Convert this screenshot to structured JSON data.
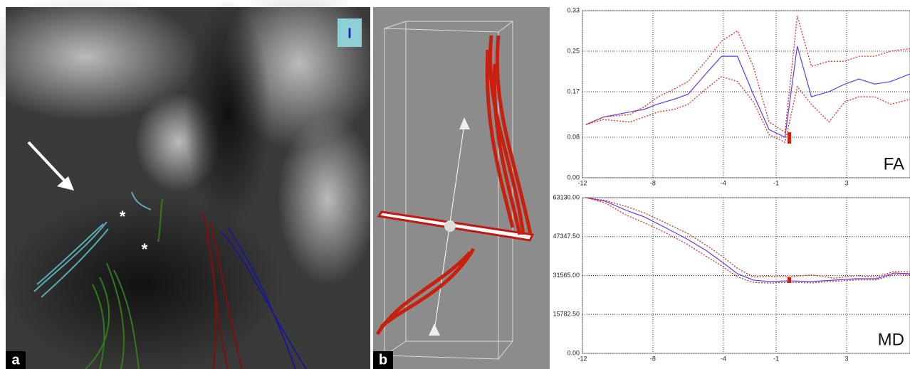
{
  "panels": [
    {
      "label": "a",
      "annotations": [
        "*",
        "*"
      ],
      "cube_label": "I"
    },
    {
      "label": "b"
    }
  ],
  "chart_data": [
    {
      "type": "line",
      "text_label": "FA",
      "x": [
        -11.8,
        -10.8,
        -9.3,
        -8.5,
        -7.7,
        -6.8,
        -6.0,
        -5.0,
        -4.1,
        -3.2,
        -2.3,
        -1.4,
        -0.5,
        0.2,
        1.0,
        2.0,
        2.9,
        3.7,
        4.6,
        5.5,
        6.6
      ],
      "series": [
        {
          "color": "#5a3cf0",
          "style": "solid",
          "values": [
            0.105,
            0.12,
            0.13,
            0.135,
            0.146,
            0.155,
            0.165,
            0.205,
            0.24,
            0.24,
            0.165,
            0.095,
            0.08,
            0.26,
            0.16,
            0.17,
            0.185,
            0.195,
            0.185,
            0.19,
            0.205
          ]
        },
        {
          "color": "#e03020",
          "style": "dotted",
          "values": [
            0.105,
            0.12,
            0.125,
            0.14,
            0.16,
            0.175,
            0.19,
            0.23,
            0.27,
            0.29,
            0.22,
            0.11,
            0.09,
            0.32,
            0.22,
            0.23,
            0.23,
            0.24,
            0.24,
            0.25,
            0.255
          ]
        },
        {
          "color": "#e03020",
          "style": "dotted",
          "values": [
            0.105,
            0.115,
            0.11,
            0.12,
            0.13,
            0.135,
            0.145,
            0.175,
            0.2,
            0.19,
            0.15,
            0.085,
            0.07,
            0.18,
            0.145,
            0.11,
            0.15,
            0.16,
            0.16,
            0.145,
            0.155
          ]
        }
      ],
      "xlim": [
        -12,
        6.6
      ],
      "xticks": [
        -12,
        -8,
        -4,
        -1,
        3
      ],
      "ylim": [
        0,
        0.33
      ],
      "yticks": [
        {
          "value": 0,
          "label": "0.00"
        },
        0.08,
        0.17,
        0.25,
        0.33
      ],
      "grid": true
    },
    {
      "type": "line",
      "text_label": "MD",
      "x": [
        -11.8,
        -10.7,
        -9.5,
        -8.5,
        -7.3,
        -6.0,
        -5.0,
        -4.1,
        -3.2,
        -2.3,
        -1.4,
        -0.3,
        1.0,
        2.3,
        3.5,
        4.7,
        5.7,
        6.6
      ],
      "series": [
        {
          "color": "#5a3cf0",
          "style": "solid",
          "values": [
            63130,
            61690,
            57940,
            55350,
            51030,
            46120,
            41800,
            37190,
            32290,
            29700,
            29120,
            29400,
            29120,
            29700,
            30270,
            30270,
            32580,
            32290
          ]
        },
        {
          "color": "#e03020",
          "style": "dotted",
          "values": [
            63130,
            62000,
            59500,
            57000,
            53000,
            48500,
            44000,
            39500,
            34500,
            31000,
            31200,
            31000,
            31800,
            30500,
            31500,
            31000,
            33200,
            33000
          ]
        },
        {
          "color": "#e03020",
          "style": "dotted",
          "values": [
            63130,
            61000,
            56000,
            53000,
            49000,
            44000,
            39500,
            35500,
            31000,
            28800,
            28500,
            28800,
            28600,
            29200,
            29800,
            29800,
            32000,
            31800
          ]
        }
      ],
      "xlim": [
        -12,
        6.6
      ],
      "xticks": [
        -12,
        -8,
        -4,
        -1,
        3
      ],
      "ylim": [
        0,
        63130
      ],
      "yticks": [
        {
          "value": 0,
          "label": "0.00"
        },
        {
          "value": 15782.5,
          "label": "15782.50"
        },
        {
          "value": 31565,
          "label": "31565.00"
        },
        {
          "value": 47347.5,
          "label": "47347.50"
        },
        {
          "value": 63130,
          "label": "63130.00"
        }
      ],
      "grid": true
    }
  ]
}
